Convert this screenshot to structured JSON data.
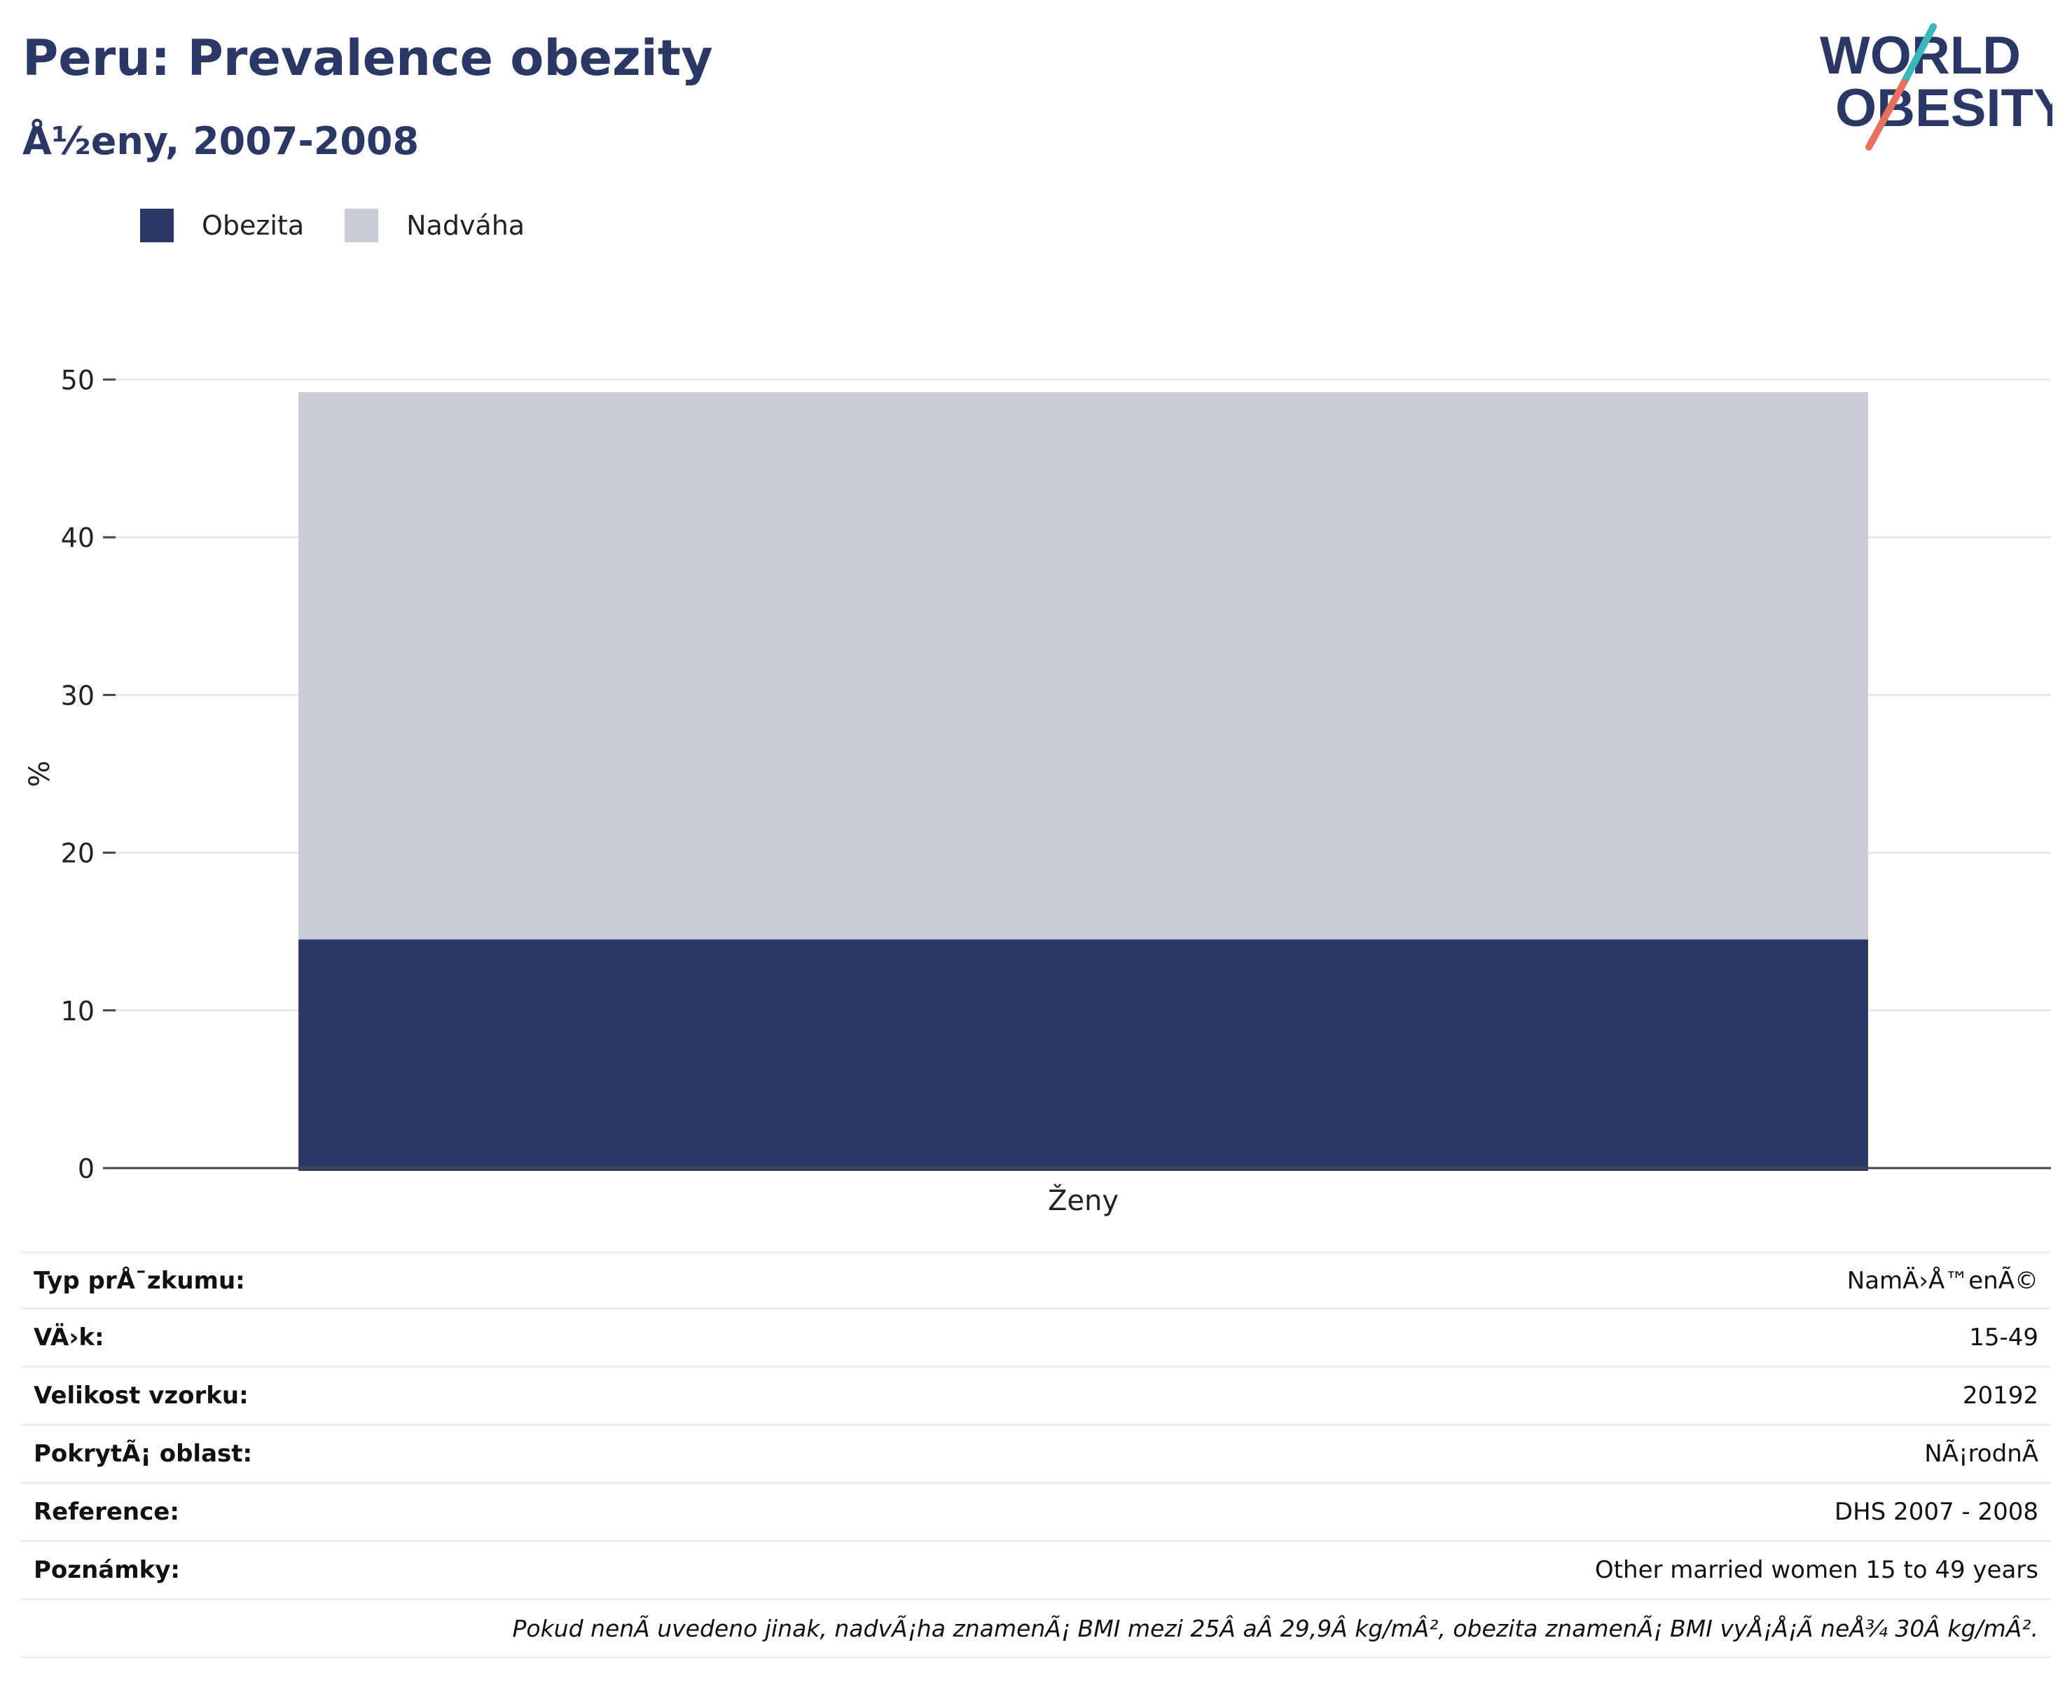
{
  "header": {
    "title": "Peru: Prevalence obezity",
    "subtitle": "Å½eny, 2007-2008"
  },
  "logo": {
    "line1": "WORLD",
    "line2": "OBESITY"
  },
  "legend": {
    "items": [
      {
        "label": "Obezita",
        "color": "#2b3765"
      },
      {
        "label": "Nadváha",
        "color": "#cacdd8"
      }
    ]
  },
  "chart_data": {
    "type": "bar",
    "stacked": true,
    "categories": [
      "Ženy"
    ],
    "series": [
      {
        "name": "Obezita",
        "values": [
          14.5
        ],
        "color": "#2b3765"
      },
      {
        "name": "Nadváha",
        "values": [
          34.7
        ],
        "color": "#cacdd8"
      }
    ],
    "ylabel": "%",
    "xlabel": "",
    "ylim": [
      0,
      50
    ],
    "yticks": [
      0,
      10,
      20,
      30,
      40,
      50
    ],
    "grid": true
  },
  "info": {
    "rows": [
      {
        "label": "Typ prÅ¯zkumu:",
        "value": "NamÄ›Å™enÃ©"
      },
      {
        "label": "VÄ›k:",
        "value": "15-49"
      },
      {
        "label": "Velikost vzorku:",
        "value": "20192"
      },
      {
        "label": "PokrytÃ¡ oblast:",
        "value": "NÃ¡rodnÃ"
      },
      {
        "label": "Reference:",
        "value": "DHS 2007 - 2008"
      },
      {
        "label": "Poznámky:",
        "value": "Other married women 15 to 49 years"
      }
    ],
    "footnote": "Pokud nenÃ uvedeno jinak, nadvÃ¡ha znamenÃ¡ BMI mezi 25Â aÂ 29,9Â kg/mÂ², obezita znamenÃ¡ BMI vyÅ¡Å¡Ã neÅ¾ 30Â kg/mÂ²."
  }
}
